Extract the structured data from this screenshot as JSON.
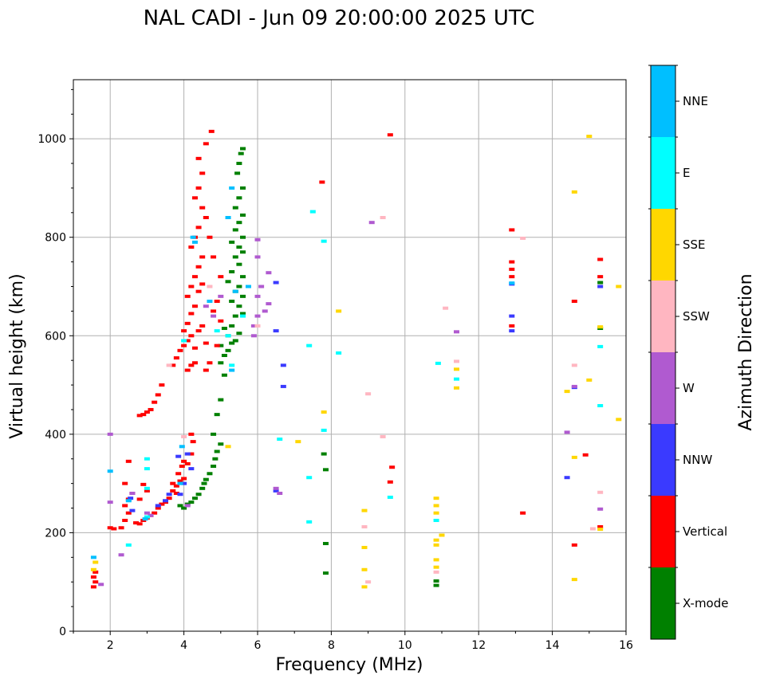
{
  "chart_data": {
    "type": "scatter",
    "title": "NAL CADI - Jun 09 20:00:00 2025 UTC",
    "xlabel": "Frequency (MHz)",
    "ylabel": "Virtual height (km)",
    "xlim": [
      1,
      16
    ],
    "ylim": [
      0,
      1120
    ],
    "xticks": [
      2,
      4,
      6,
      8,
      10,
      12,
      14,
      16
    ],
    "yticks": [
      0,
      200,
      400,
      600,
      800,
      1000
    ],
    "xtick_labels": [
      "2",
      "4",
      "6",
      "8",
      "10",
      "12",
      "14",
      "16"
    ],
    "ytick_labels": [
      "0",
      "200",
      "400",
      "600",
      "800",
      "1000"
    ],
    "grid": true,
    "colorbar": {
      "title": "Azimuth Direction",
      "categories": [
        {
          "name": "X-mode",
          "color": "#008000"
        },
        {
          "name": "Vertical",
          "color": "#ff0000"
        },
        {
          "name": "NNW",
          "color": "#3a3aff"
        },
        {
          "name": "W",
          "color": "#b05ad0"
        },
        {
          "name": "SSW",
          "color": "#ffb6c1"
        },
        {
          "name": "SSE",
          "color": "#ffd700"
        },
        {
          "name": "E",
          "color": "#00ffff"
        },
        {
          "name": "NNE",
          "color": "#00bfff"
        }
      ]
    },
    "series": [
      {
        "name": "X-mode",
        "color": "#008000",
        "points": [
          [
            3.9,
            255
          ],
          [
            4.0,
            250
          ],
          [
            4.1,
            258
          ],
          [
            4.2,
            262
          ],
          [
            4.3,
            270
          ],
          [
            4.4,
            278
          ],
          [
            4.5,
            290
          ],
          [
            4.55,
            300
          ],
          [
            4.6,
            308
          ],
          [
            4.7,
            320
          ],
          [
            4.8,
            335
          ],
          [
            4.85,
            350
          ],
          [
            4.9,
            365
          ],
          [
            5.0,
            380
          ],
          [
            4.8,
            400
          ],
          [
            4.9,
            440
          ],
          [
            5.0,
            470
          ],
          [
            5.1,
            520
          ],
          [
            5.0,
            545
          ],
          [
            5.1,
            560
          ],
          [
            5.2,
            570
          ],
          [
            5.0,
            580
          ],
          [
            5.3,
            585
          ],
          [
            5.4,
            590
          ],
          [
            5.2,
            600
          ],
          [
            5.5,
            605
          ],
          [
            5.1,
            615
          ],
          [
            5.3,
            620
          ],
          [
            5.4,
            640
          ],
          [
            5.6,
            645
          ],
          [
            5.5,
            660
          ],
          [
            5.3,
            670
          ],
          [
            5.6,
            680
          ],
          [
            5.4,
            690
          ],
          [
            5.5,
            700
          ],
          [
            5.2,
            710
          ],
          [
            5.6,
            720
          ],
          [
            5.3,
            730
          ],
          [
            5.5,
            745
          ],
          [
            5.4,
            760
          ],
          [
            5.6,
            770
          ],
          [
            5.5,
            780
          ],
          [
            5.3,
            790
          ],
          [
            5.6,
            800
          ],
          [
            5.4,
            815
          ],
          [
            5.5,
            830
          ],
          [
            5.6,
            845
          ],
          [
            5.4,
            860
          ],
          [
            5.5,
            880
          ],
          [
            5.6,
            900
          ],
          [
            5.45,
            930
          ],
          [
            5.5,
            950
          ],
          [
            5.55,
            970
          ],
          [
            5.6,
            980
          ],
          [
            10.85,
            93
          ],
          [
            10.85,
            102
          ],
          [
            7.85,
            118
          ],
          [
            7.85,
            178
          ],
          [
            7.85,
            328
          ],
          [
            7.8,
            360
          ],
          [
            15.3,
            615
          ],
          [
            15.3,
            708
          ]
        ]
      },
      {
        "name": "Vertical",
        "color": "#ff0000",
        "points": [
          [
            1.55,
            90
          ],
          [
            1.6,
            100
          ],
          [
            1.55,
            110
          ],
          [
            1.6,
            120
          ],
          [
            2.0,
            210
          ],
          [
            2.1,
            208
          ],
          [
            2.3,
            210
          ],
          [
            2.4,
            225
          ],
          [
            2.5,
            240
          ],
          [
            2.4,
            255
          ],
          [
            2.5,
            268
          ],
          [
            2.6,
            280
          ],
          [
            2.4,
            300
          ],
          [
            2.5,
            345
          ],
          [
            2.7,
            220
          ],
          [
            2.8,
            218
          ],
          [
            2.9,
            225
          ],
          [
            3.0,
            230
          ],
          [
            3.1,
            235
          ],
          [
            3.2,
            240
          ],
          [
            3.3,
            250
          ],
          [
            3.4,
            258
          ],
          [
            3.5,
            262
          ],
          [
            3.6,
            270
          ],
          [
            3.7,
            285
          ],
          [
            3.8,
            295
          ],
          [
            3.9,
            305
          ],
          [
            3.85,
            320
          ],
          [
            3.95,
            335
          ],
          [
            4.0,
            345
          ],
          [
            4.1,
            340
          ],
          [
            4.2,
            360
          ],
          [
            4.0,
            310
          ],
          [
            3.7,
            300
          ],
          [
            3.8,
            280
          ],
          [
            4.25,
            385
          ],
          [
            4.2,
            400
          ],
          [
            2.9,
            298
          ],
          [
            3.0,
            285
          ],
          [
            2.8,
            268
          ],
          [
            2.8,
            438
          ],
          [
            2.9,
            440
          ],
          [
            3.0,
            445
          ],
          [
            3.1,
            450
          ],
          [
            3.2,
            465
          ],
          [
            3.3,
            480
          ],
          [
            3.4,
            500
          ],
          [
            3.7,
            540
          ],
          [
            3.8,
            555
          ],
          [
            3.9,
            570
          ],
          [
            4.0,
            580
          ],
          [
            4.1,
            530
          ],
          [
            4.2,
            540
          ],
          [
            4.3,
            545
          ],
          [
            4.1,
            590
          ],
          [
            4.2,
            600
          ],
          [
            4.3,
            575
          ],
          [
            4.4,
            610
          ],
          [
            4.5,
            620
          ],
          [
            4.6,
            585
          ],
          [
            4.7,
            545
          ],
          [
            4.6,
            530
          ],
          [
            4.0,
            610
          ],
          [
            4.1,
            625
          ],
          [
            4.2,
            645
          ],
          [
            4.3,
            660
          ],
          [
            4.1,
            680
          ],
          [
            4.2,
            700
          ],
          [
            4.4,
            690
          ],
          [
            4.5,
            705
          ],
          [
            4.3,
            720
          ],
          [
            4.4,
            740
          ],
          [
            4.5,
            760
          ],
          [
            4.2,
            780
          ],
          [
            4.3,
            800
          ],
          [
            4.4,
            820
          ],
          [
            4.6,
            840
          ],
          [
            4.5,
            860
          ],
          [
            4.3,
            880
          ],
          [
            4.4,
            900
          ],
          [
            4.5,
            930
          ],
          [
            4.4,
            960
          ],
          [
            4.6,
            990
          ],
          [
            4.75,
            1015
          ],
          [
            4.8,
            650
          ],
          [
            4.9,
            670
          ],
          [
            5.0,
            630
          ],
          [
            4.9,
            580
          ],
          [
            4.8,
            760
          ],
          [
            5.0,
            720
          ],
          [
            4.7,
            800
          ],
          [
            7.75,
            912
          ],
          [
            9.6,
            1008
          ],
          [
            9.65,
            333
          ],
          [
            9.6,
            303
          ],
          [
            12.9,
            815
          ],
          [
            12.9,
            750
          ],
          [
            12.9,
            735
          ],
          [
            12.9,
            720
          ],
          [
            12.9,
            620
          ],
          [
            13.2,
            240
          ],
          [
            14.6,
            175
          ],
          [
            14.9,
            358
          ],
          [
            14.6,
            670
          ],
          [
            15.3,
            755
          ],
          [
            15.3,
            720
          ],
          [
            15.3,
            212
          ]
        ]
      },
      {
        "name": "NNW",
        "color": "#3a3aff",
        "points": [
          [
            3.3,
            255
          ],
          [
            3.5,
            265
          ],
          [
            3.6,
            278
          ],
          [
            3.9,
            278
          ],
          [
            4.0,
            300
          ],
          [
            3.85,
            355
          ],
          [
            2.55,
            270
          ],
          [
            2.6,
            245
          ],
          [
            4.2,
            330
          ],
          [
            4.1,
            360
          ],
          [
            6.5,
            285
          ],
          [
            6.7,
            540
          ],
          [
            6.7,
            497
          ],
          [
            6.5,
            708
          ],
          [
            6.5,
            610
          ],
          [
            12.9,
            640
          ],
          [
            12.9,
            610
          ],
          [
            12.9,
            705
          ],
          [
            14.4,
            312
          ],
          [
            14.6,
            495
          ],
          [
            15.3,
            700
          ]
        ]
      },
      {
        "name": "W",
        "color": "#b05ad0",
        "points": [
          [
            1.75,
            95
          ],
          [
            2.0,
            400
          ],
          [
            2.0,
            262
          ],
          [
            2.3,
            155
          ],
          [
            2.6,
            280
          ],
          [
            3.0,
            240
          ],
          [
            3.1,
            235
          ],
          [
            4.1,
            255
          ],
          [
            4.6,
            660
          ],
          [
            4.8,
            640
          ],
          [
            5.0,
            680
          ],
          [
            5.9,
            600
          ],
          [
            5.9,
            620
          ],
          [
            6.0,
            640
          ],
          [
            6.0,
            680
          ],
          [
            6.2,
            650
          ],
          [
            6.3,
            665
          ],
          [
            6.1,
            700
          ],
          [
            6.0,
            760
          ],
          [
            6.0,
            795
          ],
          [
            6.3,
            728
          ],
          [
            6.6,
            280
          ],
          [
            6.5,
            290
          ],
          [
            9.1,
            830
          ],
          [
            11.4,
            608
          ],
          [
            14.4,
            404
          ],
          [
            14.6,
            497
          ],
          [
            15.3,
            248
          ]
        ]
      },
      {
        "name": "SSW",
        "color": "#ffb6c1",
        "points": [
          [
            4.0,
            395
          ],
          [
            3.6,
            540
          ],
          [
            4.7,
            700
          ],
          [
            6.0,
            620
          ],
          [
            8.9,
            212
          ],
          [
            9.0,
            482
          ],
          [
            9.4,
            840
          ],
          [
            9.4,
            395
          ],
          [
            9.0,
            100
          ],
          [
            10.85,
            120
          ],
          [
            11.1,
            656
          ],
          [
            11.4,
            548
          ],
          [
            13.2,
            798
          ],
          [
            14.6,
            540
          ],
          [
            15.3,
            282
          ],
          [
            15.1,
            208
          ]
        ]
      },
      {
        "name": "SSE",
        "color": "#ffd700",
        "points": [
          [
            1.55,
            125
          ],
          [
            1.6,
            140
          ],
          [
            5.2,
            375
          ],
          [
            7.1,
            385
          ],
          [
            7.8,
            445
          ],
          [
            8.2,
            650
          ],
          [
            8.9,
            90
          ],
          [
            8.9,
            125
          ],
          [
            8.9,
            170
          ],
          [
            8.9,
            245
          ],
          [
            10.85,
            130
          ],
          [
            10.85,
            145
          ],
          [
            10.85,
            175
          ],
          [
            10.85,
            185
          ],
          [
            10.85,
            240
          ],
          [
            10.85,
            255
          ],
          [
            10.85,
            270
          ],
          [
            11.0,
            195
          ],
          [
            11.4,
            532
          ],
          [
            11.4,
            494
          ],
          [
            14.4,
            487
          ],
          [
            14.6,
            105
          ],
          [
            14.6,
            353
          ],
          [
            14.6,
            892
          ],
          [
            15.0,
            510
          ],
          [
            15.0,
            1005
          ],
          [
            15.3,
            618
          ],
          [
            15.3,
            207
          ],
          [
            15.8,
            430
          ],
          [
            15.8,
            700
          ]
        ]
      },
      {
        "name": "E",
        "color": "#00ffff",
        "points": [
          [
            2.5,
            175
          ],
          [
            3.0,
            350
          ],
          [
            3.0,
            330
          ],
          [
            3.0,
            290
          ],
          [
            3.0,
            232
          ],
          [
            4.0,
            590
          ],
          [
            4.9,
            610
          ],
          [
            5.2,
            600
          ],
          [
            5.3,
            540
          ],
          [
            5.6,
            640
          ],
          [
            6.6,
            390
          ],
          [
            7.4,
            580
          ],
          [
            7.4,
            312
          ],
          [
            7.4,
            222
          ],
          [
            7.5,
            852
          ],
          [
            7.8,
            792
          ],
          [
            7.8,
            408
          ],
          [
            8.2,
            565
          ],
          [
            9.6,
            272
          ],
          [
            10.9,
            544
          ],
          [
            11.4,
            512
          ],
          [
            10.85,
            225
          ],
          [
            15.3,
            578
          ],
          [
            15.3,
            458
          ]
        ]
      },
      {
        "name": "NNE",
        "color": "#00bfff",
        "points": [
          [
            1.55,
            150
          ],
          [
            2.0,
            325
          ],
          [
            2.5,
            265
          ],
          [
            2.95,
            228
          ],
          [
            3.9,
            300
          ],
          [
            3.95,
            375
          ],
          [
            4.25,
            800
          ],
          [
            4.3,
            790
          ],
          [
            5.3,
            900
          ],
          [
            5.2,
            840
          ],
          [
            5.3,
            530
          ],
          [
            5.4,
            690
          ],
          [
            5.75,
            700
          ],
          [
            4.7,
            670
          ],
          [
            12.9,
            707
          ]
        ]
      }
    ]
  }
}
